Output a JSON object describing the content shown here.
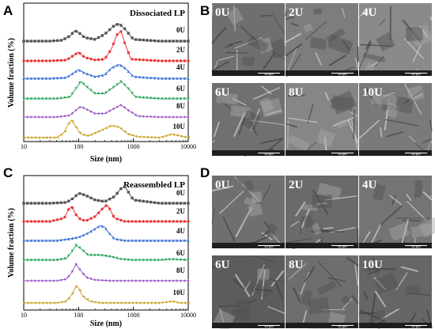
{
  "figure": {
    "panels": {
      "A": "A",
      "B": "B",
      "C": "C",
      "D": "D"
    }
  },
  "chart_data": [
    {
      "panel": "A",
      "type": "line",
      "title": "Dissociated LP",
      "xlabel": "Size (nm)",
      "ylabel": "Volume fraction (%)",
      "x_scale": "log",
      "xlim": [
        10,
        10000
      ],
      "x_ticks": [
        "10",
        "100",
        "1000",
        "10000"
      ],
      "legend": "labels above each trace, right side",
      "series": [
        {
          "name": "0U",
          "color": "#555555",
          "marker": "square",
          "x": [
            10,
            30,
            50,
            70,
            85,
            100,
            130,
            200,
            300,
            450,
            550,
            700,
            1000,
            3000,
            10000
          ],
          "y": [
            0,
            0,
            0.5,
            3,
            6,
            5,
            2,
            1,
            4,
            9,
            10,
            7,
            1,
            0,
            0
          ]
        },
        {
          "name": "2U",
          "color": "#e8373a",
          "marker": "circle",
          "x": [
            10,
            30,
            60,
            80,
            100,
            130,
            200,
            300,
            400,
            500,
            600,
            700,
            900,
            3000,
            10000
          ],
          "y": [
            0,
            0,
            0.5,
            3,
            5,
            2,
            0.5,
            1,
            7,
            15,
            17,
            10,
            1,
            0,
            0
          ]
        },
        {
          "name": "4U",
          "color": "#3a6fd6",
          "marker": "triangle-up",
          "x": [
            10,
            30,
            60,
            80,
            100,
            130,
            200,
            300,
            400,
            550,
            700,
            1000,
            3000,
            10000
          ],
          "y": [
            0,
            0,
            0.5,
            3,
            5,
            3,
            1,
            2,
            6,
            8,
            6,
            1,
            0,
            0
          ]
        },
        {
          "name": "6U",
          "color": "#2ea862",
          "marker": "triangle-down",
          "x": [
            10,
            40,
            70,
            90,
            110,
            140,
            200,
            300,
            450,
            600,
            800,
            1100,
            3000,
            10000
          ],
          "y": [
            0,
            0,
            1,
            6,
            10,
            7,
            3,
            3,
            7,
            10,
            6,
            1,
            0,
            0
          ]
        },
        {
          "name": "8U",
          "color": "#9d5cc8",
          "marker": "diamond",
          "x": [
            10,
            40,
            70,
            90,
            110,
            150,
            200,
            300,
            450,
            600,
            800,
            1200,
            3000,
            10000
          ],
          "y": [
            0,
            0,
            1,
            4,
            6,
            4,
            2,
            2,
            5,
            7,
            4,
            0.5,
            0,
            0
          ]
        },
        {
          "name": "10U",
          "color": "#c9a227",
          "marker": "triangle-left",
          "x": [
            10,
            40,
            55,
            65,
            75,
            90,
            110,
            150,
            250,
            400,
            550,
            800,
            1200,
            3000,
            5000,
            10000
          ],
          "y": [
            0,
            0,
            3,
            8,
            10,
            6,
            2,
            1,
            4,
            7,
            6,
            2,
            0.5,
            0,
            2,
            0
          ]
        }
      ]
    },
    {
      "panel": "C",
      "type": "line",
      "title": "Reassembled LP",
      "xlabel": "Size (nm)",
      "ylabel": "Volume fraction (%)",
      "x_scale": "log",
      "xlim": [
        10,
        10000
      ],
      "x_ticks": [
        "10",
        "100",
        "1000",
        "10000"
      ],
      "legend": "labels above each trace, right side",
      "series": [
        {
          "name": "0U",
          "color": "#555555",
          "marker": "square",
          "x": [
            10,
            30,
            60,
            80,
            100,
            130,
            200,
            300,
            450,
            600,
            700,
            1000,
            3000,
            10000
          ],
          "y": [
            0,
            0,
            0.5,
            3,
            6,
            5,
            2,
            1,
            4,
            9,
            10,
            2,
            0,
            0
          ]
        },
        {
          "name": "2U",
          "color": "#e8373a",
          "marker": "circle",
          "x": [
            10,
            30,
            55,
            65,
            75,
            90,
            110,
            140,
            200,
            280,
            330,
            380,
            450,
            700,
            3000,
            10000
          ],
          "y": [
            0,
            0,
            2,
            7,
            9,
            4,
            1,
            0.5,
            3,
            8,
            10,
            7,
            2,
            0,
            0,
            0
          ]
        },
        {
          "name": "4U",
          "color": "#3a6fd6",
          "marker": "triangle-up",
          "x": [
            10,
            40,
            70,
            100,
            140,
            200,
            250,
            300,
            350,
            450,
            700,
            3000,
            10000
          ],
          "y": [
            0,
            0,
            1,
            2,
            4,
            7,
            9,
            8,
            5,
            1,
            0,
            0,
            0
          ]
        },
        {
          "name": "6U",
          "color": "#2ea862",
          "marker": "triangle-down",
          "x": [
            10,
            40,
            60,
            75,
            90,
            110,
            150,
            250,
            400,
            600,
            1000,
            3000,
            5000,
            10000
          ],
          "y": [
            0,
            0,
            1,
            5,
            9,
            7,
            3,
            3,
            2,
            0.5,
            0,
            0,
            0.5,
            0
          ]
        },
        {
          "name": "8U",
          "color": "#9d5cc8",
          "marker": "diamond",
          "x": [
            10,
            40,
            60,
            75,
            90,
            110,
            140,
            200,
            400,
            3000,
            10000
          ],
          "y": [
            0,
            0,
            1,
            5,
            10,
            6,
            2,
            0.5,
            0,
            0,
            0
          ]
        },
        {
          "name": "10U",
          "color": "#c9a227",
          "marker": "triangle-left",
          "x": [
            10,
            40,
            60,
            75,
            90,
            100,
            120,
            160,
            250,
            3000,
            5000,
            7000,
            10000
          ],
          "y": [
            0,
            0,
            1,
            5,
            10,
            9,
            4,
            1,
            0,
            0,
            1,
            0,
            0
          ]
        }
      ]
    }
  ],
  "sem_panels": {
    "B": {
      "tiles": [
        {
          "label": "0U",
          "bg": "#6f6f6f",
          "scale": "50 µm"
        },
        {
          "label": "2U",
          "bg": "#7d7d7d",
          "scale": "50 µm"
        },
        {
          "label": "4U",
          "bg": "#8a8a8a",
          "scale": "50 µm"
        },
        {
          "label": "6U",
          "bg": "#707070",
          "scale": "50 µm"
        },
        {
          "label": "8U",
          "bg": "#868686",
          "scale": "50 µm"
        },
        {
          "label": "10U",
          "bg": "#7a7a7a",
          "scale": "50 µm"
        }
      ]
    },
    "D": {
      "tiles": [
        {
          "label": "0U",
          "bg": "#6f6f6f",
          "scale": "50 µm"
        },
        {
          "label": "2U",
          "bg": "#6a6a6a",
          "scale": "50 µm"
        },
        {
          "label": "4U",
          "bg": "#747474",
          "scale": "50 µm"
        },
        {
          "label": "6U",
          "bg": "#5c5c5c",
          "scale": "50 µm"
        },
        {
          "label": "8U",
          "bg": "#6e6e6e",
          "scale": "50 µm"
        },
        {
          "label": "10U",
          "bg": "#666666",
          "scale": "50 µm"
        }
      ]
    }
  }
}
